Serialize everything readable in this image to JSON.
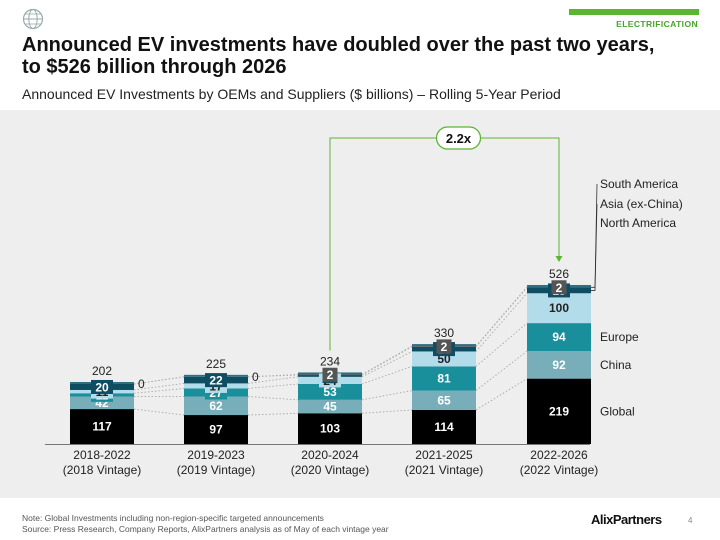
{
  "header": {
    "section_tag": "ELECTRIFICATION",
    "headline_line1": "Announced EV investments have doubled over the past two years,",
    "headline_line2": "to $526 billion through 2026",
    "subtitle": "Announced EV Investments by OEMs and Suppliers ($ billions) – Rolling 5-Year Period"
  },
  "footer": {
    "note": "Note: Global Investments including non-region-specific targeted announcements",
    "source": "Source: Press Research, Company Reports, AlixPartners analysis as of May of each vintage year",
    "brand": "AlixPartners",
    "page_number": "4"
  },
  "colors": {
    "Global": "#000000",
    "China": "#77aeba",
    "Europe": "#1a8f9c",
    "North America": "#b3dceb",
    "Asia (ex-China)": "#0e4d62",
    "South America": "#555555",
    "accent_green": "#5cb531"
  },
  "chart_data": {
    "type": "bar",
    "stacked": true,
    "categories": [
      "2018-2022",
      "2019-2023",
      "2020-2024",
      "2021-2025",
      "2022-2026"
    ],
    "category_sublabels": [
      "(2018 Vintage)",
      "(2019 Vintage)",
      "(2020 Vintage)",
      "(2021 Vintage)",
      "(2022 Vintage)"
    ],
    "series": [
      {
        "name": "Global",
        "values": [
          117,
          97,
          103,
          114,
          219
        ]
      },
      {
        "name": "China",
        "values": [
          42,
          62,
          45,
          65,
          92
        ]
      },
      {
        "name": "Europe",
        "values": [
          11,
          27,
          53,
          81,
          94
        ]
      },
      {
        "name": "North America",
        "values": [
          11,
          17,
          24,
          50,
          100
        ]
      },
      {
        "name": "Asia (ex-China)",
        "values": [
          20,
          22,
          6,
          16,
          19
        ]
      },
      {
        "name": "South America",
        "values": [
          0,
          0,
          2,
          2,
          2
        ]
      }
    ],
    "totals": [
      202,
      225,
      234,
      330,
      526
    ],
    "growth_annotation": "2.2x",
    "grid": false,
    "legend": "right, aligned to the last bar"
  }
}
